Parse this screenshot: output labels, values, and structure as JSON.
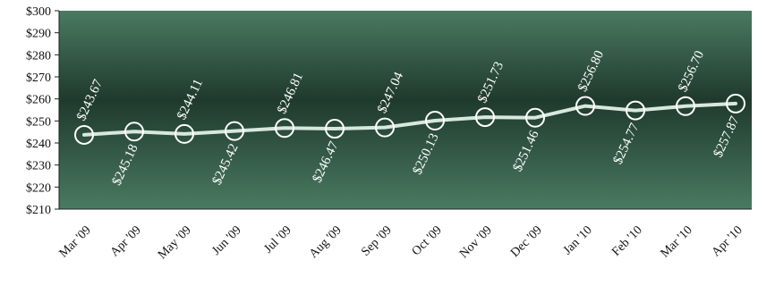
{
  "chart_data": {
    "type": "line",
    "categories": [
      "Mar '09",
      "Apr '09",
      "May '09",
      "Jun '09",
      "Jul '09",
      "Aug '09",
      "Sep '09",
      "Oct '09",
      "Nov '09",
      "Dec '09",
      "Jan '10",
      "Feb '10",
      "Mar '10",
      "Apr '10"
    ],
    "values": [
      243.67,
      245.18,
      244.11,
      245.42,
      246.81,
      246.47,
      247.04,
      250.13,
      251.73,
      251.46,
      256.8,
      254.77,
      256.7,
      257.87
    ],
    "data_labels": [
      "$243.67",
      "$245.18",
      "$244.11",
      "$245.42",
      "$246.81",
      "$246.47",
      "$247.04",
      "$250.13",
      "$251.73",
      "$251.46",
      "$256.80",
      "$254.77",
      "$256.70",
      "$257.87"
    ],
    "y_ticks": [
      210,
      220,
      230,
      240,
      250,
      260,
      270,
      280,
      290,
      300
    ],
    "y_tick_labels": [
      "$210",
      "$220",
      "$230",
      "$240",
      "$250",
      "$260",
      "$270",
      "$280",
      "$290",
      "$300"
    ],
    "ylim": [
      210,
      300
    ],
    "grid": false,
    "legend": "none",
    "colors": {
      "plot_dark": "#1f3a2c",
      "plot_light": "#4a7a62",
      "line": "#d8e8dd",
      "marker": "#ffffff",
      "label": "#ffffff"
    }
  }
}
